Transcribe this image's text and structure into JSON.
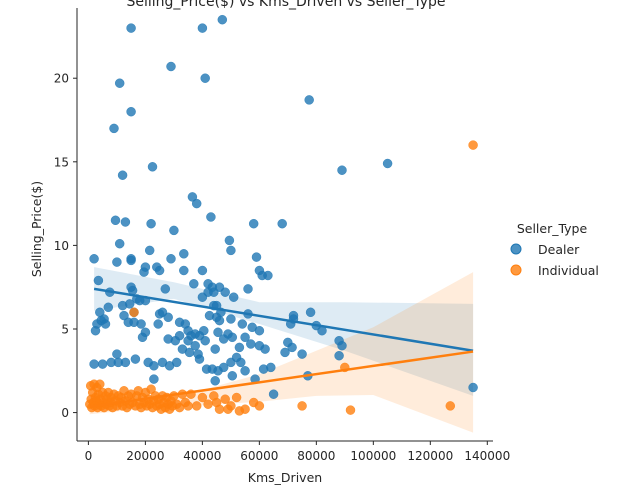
{
  "chart_data": {
    "type": "scatter",
    "title": "Selling_Price($) vs Kms_Driven vs Seller_Type",
    "xlabel": "Kms_Driven",
    "ylabel": "Selling_Price($)",
    "xlim": [
      -4000,
      142000
    ],
    "ylim": [
      -1.7,
      24.2
    ],
    "x_ticks": [
      0,
      20000,
      40000,
      60000,
      80000,
      100000,
      120000,
      140000
    ],
    "y_ticks": [
      0,
      5,
      10,
      15,
      20
    ],
    "grid": false,
    "legend": {
      "title": "Seller_Type",
      "placement": "right",
      "entries": [
        "Dealer",
        "Individual"
      ]
    },
    "series": [
      {
        "name": "Dealer",
        "color": "#1f77b4",
        "fit_line": {
          "x": [
            2000,
            135000
          ],
          "y": [
            7.4,
            3.7
          ]
        },
        "ci_band": {
          "x": [
            2000,
            30000,
            60000,
            90000,
            135000
          ],
          "upper": [
            8.7,
            7.8,
            6.6,
            6.6,
            6.5
          ],
          "lower": [
            6.1,
            6.8,
            5.3,
            3.7,
            1.0
          ]
        },
        "points": [
          [
            2000,
            9.2
          ],
          [
            2000,
            2.9
          ],
          [
            2500,
            4.9
          ],
          [
            3000,
            5.3
          ],
          [
            3500,
            7.9
          ],
          [
            4000,
            6.0
          ],
          [
            4500,
            5.5
          ],
          [
            5000,
            2.9
          ],
          [
            5500,
            5.6
          ],
          [
            6000,
            5.3
          ],
          [
            7000,
            6.3
          ],
          [
            7500,
            7.2
          ],
          [
            8000,
            3.0
          ],
          [
            9000,
            17.0
          ],
          [
            9500,
            11.5
          ],
          [
            10000,
            9.0
          ],
          [
            10000,
            3.5
          ],
          [
            10500,
            3.0
          ],
          [
            11000,
            19.7
          ],
          [
            11000,
            10.1
          ],
          [
            12000,
            14.2
          ],
          [
            12000,
            6.4
          ],
          [
            12500,
            5.8
          ],
          [
            13000,
            3.0
          ],
          [
            13000,
            11.4
          ],
          [
            14000,
            5.4
          ],
          [
            14500,
            6.5
          ],
          [
            15000,
            23.0
          ],
          [
            15000,
            18.0
          ],
          [
            15000,
            9.2
          ],
          [
            15000,
            9.1
          ],
          [
            15000,
            7.5
          ],
          [
            15500,
            7.3
          ],
          [
            16000,
            6.0
          ],
          [
            16000,
            5.4
          ],
          [
            16500,
            3.2
          ],
          [
            17000,
            6.8
          ],
          [
            18000,
            6.7
          ],
          [
            18500,
            5.3
          ],
          [
            19000,
            4.5
          ],
          [
            19500,
            8.4
          ],
          [
            20000,
            8.7
          ],
          [
            20000,
            6.7
          ],
          [
            20000,
            4.8
          ],
          [
            21000,
            3.0
          ],
          [
            21500,
            9.7
          ],
          [
            22000,
            11.3
          ],
          [
            22500,
            14.7
          ],
          [
            23000,
            2.8
          ],
          [
            23000,
            2.0
          ],
          [
            24000,
            8.7
          ],
          [
            24500,
            5.3
          ],
          [
            25000,
            8.5
          ],
          [
            25000,
            5.9
          ],
          [
            26000,
            6.0
          ],
          [
            26000,
            3.0
          ],
          [
            27000,
            7.4
          ],
          [
            28000,
            5.7
          ],
          [
            28000,
            4.4
          ],
          [
            28500,
            2.8
          ],
          [
            29000,
            20.7
          ],
          [
            29000,
            9.2
          ],
          [
            30000,
            10.9
          ],
          [
            30500,
            4.3
          ],
          [
            31000,
            3.0
          ],
          [
            32000,
            5.4
          ],
          [
            32000,
            4.6
          ],
          [
            33000,
            3.8
          ],
          [
            33500,
            9.5
          ],
          [
            33500,
            8.5
          ],
          [
            34000,
            5.3
          ],
          [
            35000,
            4.9
          ],
          [
            35000,
            4.3
          ],
          [
            35500,
            3.6
          ],
          [
            36000,
            4.6
          ],
          [
            36500,
            12.9
          ],
          [
            37000,
            7.7
          ],
          [
            37500,
            4.7
          ],
          [
            37500,
            4.0
          ],
          [
            38000,
            12.5
          ],
          [
            38500,
            3.5
          ],
          [
            39000,
            4.6
          ],
          [
            39000,
            3.2
          ],
          [
            40000,
            23.0
          ],
          [
            40000,
            8.5
          ],
          [
            40000,
            6.9
          ],
          [
            40500,
            4.9
          ],
          [
            41000,
            20.0
          ],
          [
            41000,
            4.3
          ],
          [
            41500,
            2.6
          ],
          [
            42000,
            7.2
          ],
          [
            42000,
            7.7
          ],
          [
            42500,
            5.8
          ],
          [
            43000,
            11.7
          ],
          [
            43500,
            7.5
          ],
          [
            43500,
            2.6
          ],
          [
            44000,
            7.2
          ],
          [
            44000,
            6.4
          ],
          [
            44500,
            3.8
          ],
          [
            44500,
            1.9
          ],
          [
            45000,
            6.4
          ],
          [
            45000,
            5.7
          ],
          [
            45500,
            4.8
          ],
          [
            45500,
            2.5
          ],
          [
            46000,
            5.5
          ],
          [
            46000,
            7.5
          ],
          [
            46500,
            6.0
          ],
          [
            47000,
            23.5
          ],
          [
            47500,
            4.4
          ],
          [
            47500,
            2.7
          ],
          [
            48000,
            7.2
          ],
          [
            49000,
            4.7
          ],
          [
            49500,
            10.3
          ],
          [
            50000,
            9.7
          ],
          [
            50000,
            5.6
          ],
          [
            50000,
            3.0
          ],
          [
            50500,
            4.5
          ],
          [
            50500,
            2.2
          ],
          [
            51000,
            6.9
          ],
          [
            52000,
            3.3
          ],
          [
            53000,
            3.9
          ],
          [
            53500,
            3.0
          ],
          [
            54000,
            5.3
          ],
          [
            55000,
            4.5
          ],
          [
            55000,
            2.5
          ],
          [
            56000,
            7.4
          ],
          [
            56000,
            5.9
          ],
          [
            57000,
            4.1
          ],
          [
            57500,
            5.1
          ],
          [
            58000,
            11.3
          ],
          [
            58500,
            2.0
          ],
          [
            59000,
            9.3
          ],
          [
            60000,
            8.5
          ],
          [
            60000,
            4.9
          ],
          [
            60000,
            4.0
          ],
          [
            61000,
            8.2
          ],
          [
            61500,
            2.6
          ],
          [
            62000,
            3.8
          ],
          [
            63000,
            8.2
          ],
          [
            64000,
            2.7
          ],
          [
            65000,
            1.1
          ],
          [
            68000,
            11.3
          ],
          [
            69000,
            3.6
          ],
          [
            70000,
            4.2
          ],
          [
            71000,
            5.3
          ],
          [
            71500,
            3.9
          ],
          [
            72000,
            5.8
          ],
          [
            72000,
            5.6
          ],
          [
            75000,
            3.5
          ],
          [
            77000,
            2.2
          ],
          [
            77500,
            18.7
          ],
          [
            78000,
            6.0
          ],
          [
            80000,
            5.2
          ],
          [
            82000,
            4.9
          ],
          [
            88000,
            4.3
          ],
          [
            88000,
            3.4
          ],
          [
            89000,
            14.5
          ],
          [
            89000,
            4.0
          ],
          [
            105000,
            14.9
          ],
          [
            135000,
            1.5
          ]
        ]
      },
      {
        "name": "Individual",
        "color": "#ff7f0e",
        "fit_line": {
          "x": [
            500,
            135000
          ],
          "y": [
            0.35,
            3.65
          ]
        },
        "ci_band": {
          "x": [
            500,
            20000,
            40000,
            60000,
            80000,
            100000,
            135000
          ],
          "upper": [
            0.9,
            0.95,
            1.35,
            2.3,
            3.7,
            5.1,
            8.4
          ],
          "lower": [
            -0.1,
            0.25,
            0.45,
            0.65,
            1.0,
            1.05,
            -1.2
          ]
        },
        "points": [
          [
            500,
            0.5
          ],
          [
            800,
            1.6
          ],
          [
            1000,
            0.8
          ],
          [
            1200,
            0.3
          ],
          [
            1500,
            1.2
          ],
          [
            1800,
            0.6
          ],
          [
            2000,
            1.7
          ],
          [
            2200,
            0.4
          ],
          [
            2500,
            0.9
          ],
          [
            2800,
            0.7
          ],
          [
            3000,
            1.5
          ],
          [
            3200,
            0.3
          ],
          [
            3500,
            1.1
          ],
          [
            3800,
            0.5
          ],
          [
            4000,
            1.7
          ],
          [
            4200,
            0.8
          ],
          [
            4500,
            0.4
          ],
          [
            5000,
            1.2
          ],
          [
            5200,
            0.6
          ],
          [
            5500,
            0.3
          ],
          [
            6000,
            1.0
          ],
          [
            6200,
            0.5
          ],
          [
            6500,
            0.8
          ],
          [
            7000,
            1.2
          ],
          [
            7300,
            0.4
          ],
          [
            7800,
            0.6
          ],
          [
            8000,
            0.9
          ],
          [
            8500,
            0.3
          ],
          [
            9000,
            1.1
          ],
          [
            9500,
            0.7
          ],
          [
            10000,
            0.4
          ],
          [
            10500,
            1.0
          ],
          [
            11000,
            0.6
          ],
          [
            11500,
            0.9
          ],
          [
            12000,
            0.4
          ],
          [
            12500,
            1.3
          ],
          [
            13000,
            0.7
          ],
          [
            13500,
            0.3
          ],
          [
            14000,
            1.0
          ],
          [
            14500,
            0.5
          ],
          [
            15000,
            1.1
          ],
          [
            15500,
            0.6
          ],
          [
            16000,
            6.0
          ],
          [
            16500,
            0.4
          ],
          [
            17000,
            1.0
          ],
          [
            17500,
            1.3
          ],
          [
            18000,
            0.5
          ],
          [
            18500,
            0.3
          ],
          [
            19000,
            0.9
          ],
          [
            19500,
            0.6
          ],
          [
            20000,
            1.2
          ],
          [
            20500,
            0.4
          ],
          [
            21000,
            0.8
          ],
          [
            21500,
            0.5
          ],
          [
            22000,
            1.4
          ],
          [
            22500,
            0.3
          ],
          [
            23000,
            0.7
          ],
          [
            23500,
            1.0
          ],
          [
            24000,
            0.4
          ],
          [
            24500,
            0.8
          ],
          [
            25000,
            0.5
          ],
          [
            25500,
            0.2
          ],
          [
            26000,
            1.0
          ],
          [
            26500,
            0.6
          ],
          [
            27000,
            0.3
          ],
          [
            27500,
            0.9
          ],
          [
            28000,
            0.5
          ],
          [
            28500,
            0.2
          ],
          [
            29000,
            0.7
          ],
          [
            29500,
            0.4
          ],
          [
            30000,
            1.0
          ],
          [
            31000,
            0.5
          ],
          [
            32000,
            0.3
          ],
          [
            33000,
            1.1
          ],
          [
            34000,
            0.6
          ],
          [
            35000,
            0.4
          ],
          [
            36000,
            1.1
          ],
          [
            38000,
            0.4
          ],
          [
            40000,
            0.9
          ],
          [
            42000,
            0.5
          ],
          [
            44000,
            1.0
          ],
          [
            45000,
            0.6
          ],
          [
            46000,
            0.2
          ],
          [
            48000,
            0.8
          ],
          [
            49000,
            0.2
          ],
          [
            50000,
            0.4
          ],
          [
            52000,
            0.9
          ],
          [
            53000,
            0.1
          ],
          [
            55000,
            0.2
          ],
          [
            58000,
            0.6
          ],
          [
            60000,
            0.4
          ],
          [
            75000,
            0.4
          ],
          [
            90000,
            2.7
          ],
          [
            92000,
            0.15
          ],
          [
            127000,
            0.4
          ],
          [
            135000,
            16.0
          ]
        ]
      }
    ]
  }
}
